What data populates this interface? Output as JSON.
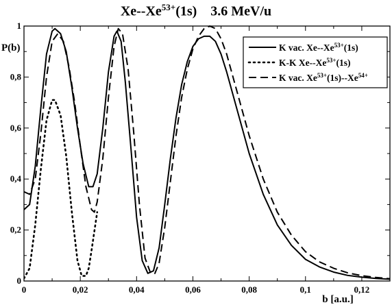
{
  "chart_data": {
    "type": "line",
    "title": {
      "parts": [
        {
          "text": "Xe--Xe",
          "sup": false
        },
        {
          "text": "53+",
          "sup": true
        },
        {
          "text": "(1s)    3.6 MeV/u",
          "sup": false
        }
      ]
    },
    "xlabel": "b [a.u.]",
    "ylabel": "P(b)",
    "xlim": [
      0,
      0.13
    ],
    "ylim": [
      0,
      1
    ],
    "x_ticks": [
      {
        "value": 0,
        "label": "0"
      },
      {
        "value": 0.02,
        "label": "0,02"
      },
      {
        "value": 0.04,
        "label": "0,04"
      },
      {
        "value": 0.06,
        "label": "0,06"
      },
      {
        "value": 0.08,
        "label": "0,08"
      },
      {
        "value": 0.1,
        "label": "0,1"
      },
      {
        "value": 0.12,
        "label": "0,12"
      }
    ],
    "y_ticks": [
      {
        "value": 0,
        "label": "0"
      },
      {
        "value": 0.2,
        "label": "0,2"
      },
      {
        "value": 0.4,
        "label": "0,4"
      },
      {
        "value": 0.6,
        "label": "0,6"
      },
      {
        "value": 0.8,
        "label": "0,8"
      },
      {
        "value": 1,
        "label": "1"
      }
    ],
    "grid": false,
    "legend_position": "top-right",
    "series": [
      {
        "style": "solid",
        "legend": [
          {
            "text": "K vac.  Xe--Xe",
            "sup": false
          },
          {
            "text": "53+",
            "sup": true
          },
          {
            "text": "(1s)",
            "sup": false
          }
        ],
        "points": [
          [
            0,
            0.28
          ],
          [
            0.002,
            0.3
          ],
          [
            0.004,
            0.45
          ],
          [
            0.006,
            0.68
          ],
          [
            0.008,
            0.89
          ],
          [
            0.01,
            0.98
          ],
          [
            0.011,
            0.99
          ],
          [
            0.013,
            0.97
          ],
          [
            0.015,
            0.9
          ],
          [
            0.017,
            0.76
          ],
          [
            0.019,
            0.6
          ],
          [
            0.021,
            0.46
          ],
          [
            0.023,
            0.37
          ],
          [
            0.0245,
            0.37
          ],
          [
            0.026,
            0.42
          ],
          [
            0.028,
            0.6
          ],
          [
            0.03,
            0.82
          ],
          [
            0.032,
            0.96
          ],
          [
            0.033,
            0.98
          ],
          [
            0.0345,
            0.94
          ],
          [
            0.036,
            0.78
          ],
          [
            0.038,
            0.52
          ],
          [
            0.04,
            0.25
          ],
          [
            0.042,
            0.08
          ],
          [
            0.044,
            0.03
          ],
          [
            0.046,
            0.04
          ],
          [
            0.048,
            0.13
          ],
          [
            0.05,
            0.3
          ],
          [
            0.052,
            0.48
          ],
          [
            0.054,
            0.64
          ],
          [
            0.056,
            0.77
          ],
          [
            0.058,
            0.86
          ],
          [
            0.06,
            0.92
          ],
          [
            0.062,
            0.95
          ],
          [
            0.064,
            0.96
          ],
          [
            0.066,
            0.96
          ],
          [
            0.068,
            0.94
          ],
          [
            0.07,
            0.89
          ],
          [
            0.072,
            0.82
          ],
          [
            0.074,
            0.74
          ],
          [
            0.076,
            0.66
          ],
          [
            0.078,
            0.58
          ],
          [
            0.08,
            0.5
          ],
          [
            0.085,
            0.34
          ],
          [
            0.09,
            0.22
          ],
          [
            0.095,
            0.14
          ],
          [
            0.1,
            0.085
          ],
          [
            0.105,
            0.055
          ],
          [
            0.11,
            0.035
          ],
          [
            0.115,
            0.022
          ],
          [
            0.12,
            0.015
          ],
          [
            0.125,
            0.01
          ],
          [
            0.13,
            0.007
          ]
        ]
      },
      {
        "style": "dotted",
        "legend": [
          {
            "text": "K-K      Xe--Xe",
            "sup": false
          },
          {
            "text": "53+",
            "sup": true
          },
          {
            "text": "(1s)",
            "sup": false
          }
        ],
        "points": [
          [
            0,
            0.01
          ],
          [
            0.002,
            0.05
          ],
          [
            0.004,
            0.22
          ],
          [
            0.006,
            0.44
          ],
          [
            0.008,
            0.63
          ],
          [
            0.01,
            0.71
          ],
          [
            0.011,
            0.71
          ],
          [
            0.013,
            0.65
          ],
          [
            0.015,
            0.49
          ],
          [
            0.017,
            0.27
          ],
          [
            0.019,
            0.08
          ],
          [
            0.0205,
            0.02
          ],
          [
            0.022,
            0.02
          ],
          [
            0.023,
            0.05
          ],
          [
            0.024,
            0.12
          ],
          [
            0.026,
            0.27
          ]
        ]
      },
      {
        "style": "dashed",
        "legend": [
          {
            "text": "K vac.  Xe",
            "sup": false
          },
          {
            "text": "53+",
            "sup": true
          },
          {
            "text": "(1s)--Xe",
            "sup": false
          },
          {
            "text": "54+",
            "sup": true
          }
        ],
        "points": [
          [
            0,
            0.35
          ],
          [
            0.002,
            0.34
          ],
          [
            0.004,
            0.4
          ],
          [
            0.006,
            0.58
          ],
          [
            0.008,
            0.8
          ],
          [
            0.01,
            0.94
          ],
          [
            0.012,
            0.97
          ],
          [
            0.014,
            0.94
          ],
          [
            0.016,
            0.84
          ],
          [
            0.018,
            0.7
          ],
          [
            0.02,
            0.53
          ],
          [
            0.022,
            0.37
          ],
          [
            0.024,
            0.28
          ],
          [
            0.025,
            0.27
          ],
          [
            0.026,
            0.31
          ],
          [
            0.028,
            0.48
          ],
          [
            0.03,
            0.72
          ],
          [
            0.032,
            0.92
          ],
          [
            0.0335,
            0.99
          ],
          [
            0.035,
            0.97
          ],
          [
            0.037,
            0.83
          ],
          [
            0.039,
            0.58
          ],
          [
            0.041,
            0.3
          ],
          [
            0.043,
            0.09
          ],
          [
            0.045,
            0.03
          ],
          [
            0.0465,
            0.03
          ],
          [
            0.048,
            0.07
          ],
          [
            0.05,
            0.21
          ],
          [
            0.052,
            0.39
          ],
          [
            0.054,
            0.57
          ],
          [
            0.056,
            0.72
          ],
          [
            0.058,
            0.83
          ],
          [
            0.06,
            0.91
          ],
          [
            0.062,
            0.96
          ],
          [
            0.064,
            0.99
          ],
          [
            0.066,
            1.0
          ],
          [
            0.068,
            0.99
          ],
          [
            0.07,
            0.95
          ],
          [
            0.072,
            0.89
          ],
          [
            0.074,
            0.81
          ],
          [
            0.076,
            0.73
          ],
          [
            0.078,
            0.65
          ],
          [
            0.08,
            0.57
          ],
          [
            0.085,
            0.4
          ],
          [
            0.09,
            0.27
          ],
          [
            0.095,
            0.18
          ],
          [
            0.1,
            0.115
          ],
          [
            0.105,
            0.075
          ],
          [
            0.11,
            0.05
          ],
          [
            0.115,
            0.032
          ],
          [
            0.12,
            0.021
          ],
          [
            0.125,
            0.014
          ],
          [
            0.13,
            0.009
          ]
        ]
      }
    ]
  }
}
